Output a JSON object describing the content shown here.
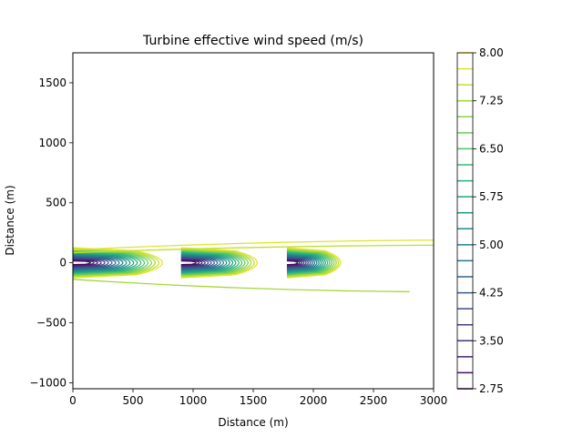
{
  "chart_data": {
    "type": "contour",
    "title": "Turbine effective wind speed (m/s)",
    "xlabel": "Distance (m)",
    "ylabel": "Distance (m)",
    "xlim": [
      0,
      3000
    ],
    "ylim": [
      -1050,
      1750
    ],
    "x_ticks": [
      0,
      500,
      1000,
      1500,
      2000,
      2500,
      3000
    ],
    "y_ticks": [
      -1000,
      -500,
      0,
      500,
      1000,
      1500
    ],
    "turbine_x": [
      0,
      900,
      1780
    ],
    "turbine_y": [
      0,
      0,
      0
    ],
    "rotor_half_width_m": 130,
    "wake_length_m": [
      1000,
      850,
      600
    ],
    "contour_levels": [
      2.75,
      3.0,
      3.25,
      3.5,
      3.75,
      4.0,
      4.25,
      4.5,
      4.75,
      5.0,
      5.25,
      5.5,
      5.75,
      6.0,
      6.25,
      6.5,
      6.75,
      7.0,
      7.25,
      7.5,
      7.75,
      8.0
    ],
    "colorbar": {
      "vmin": 2.75,
      "vmax": 8.0,
      "tick_values": [
        2.75,
        3.5,
        4.25,
        5.0,
        5.75,
        6.5,
        7.25,
        8.0
      ],
      "tick_labels": [
        "2.75",
        "3.50",
        "4.25",
        "5.00",
        "5.75",
        "6.50",
        "7.25",
        "8.00"
      ]
    },
    "colormap": [
      "#440154",
      "#472d7b",
      "#3b528b",
      "#2c728e",
      "#21918c",
      "#28ae80",
      "#5ec962",
      "#addc30",
      "#fde725"
    ]
  }
}
